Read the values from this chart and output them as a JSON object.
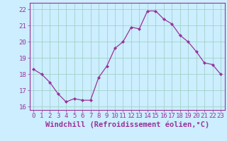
{
  "x": [
    0,
    1,
    2,
    3,
    4,
    5,
    6,
    7,
    8,
    9,
    10,
    11,
    12,
    13,
    14,
    15,
    16,
    17,
    18,
    19,
    20,
    21,
    22,
    23
  ],
  "y": [
    18.3,
    18.0,
    17.5,
    16.8,
    16.3,
    16.5,
    16.4,
    16.4,
    17.8,
    18.5,
    19.6,
    20.0,
    20.9,
    20.8,
    21.9,
    21.9,
    21.4,
    21.1,
    20.4,
    20.0,
    19.4,
    18.7,
    18.6,
    18.0
  ],
  "line_color": "#993399",
  "marker": "D",
  "marker_size": 2.0,
  "bg_color": "#cceeff",
  "grid_color": "#99ccbb",
  "tick_color": "#993399",
  "xlabel": "Windchill (Refroidissement éolien,°C)",
  "ylim": [
    15.8,
    22.4
  ],
  "xlim": [
    -0.5,
    23.5
  ],
  "yticks": [
    16,
    17,
    18,
    19,
    20,
    21,
    22
  ],
  "xticks": [
    0,
    1,
    2,
    3,
    4,
    5,
    6,
    7,
    8,
    9,
    10,
    11,
    12,
    13,
    14,
    15,
    16,
    17,
    18,
    19,
    20,
    21,
    22,
    23
  ],
  "font_color": "#993399",
  "tick_fontsize": 6.5,
  "xlabel_fontsize": 7.5
}
